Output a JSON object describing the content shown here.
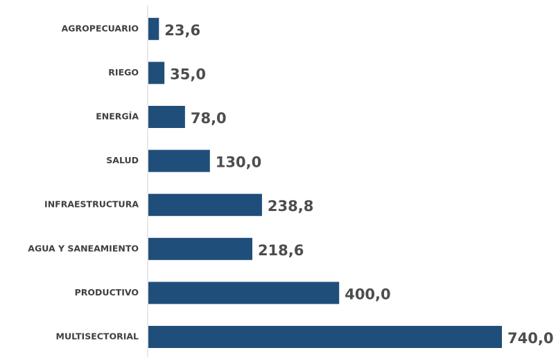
{
  "chart_data": {
    "type": "hbar",
    "categories": [
      "AGROPECUARIO",
      "RIEGO",
      "ENERGÍA",
      "SALUD",
      "INFRAESTRUCTURA",
      "AGUA Y SANEAMIENTO",
      "PRODUCTIVO",
      "MULTISECTORIAL"
    ],
    "values": [
      23.6,
      35.0,
      78.0,
      130.0,
      238.8,
      218.6,
      400.0,
      740.0
    ],
    "value_labels": [
      "23,6",
      "35,0",
      "78,0",
      "130,0",
      "238,8",
      "218,6",
      "400,0",
      "740,0"
    ],
    "color": "#1f4e7a"
  }
}
